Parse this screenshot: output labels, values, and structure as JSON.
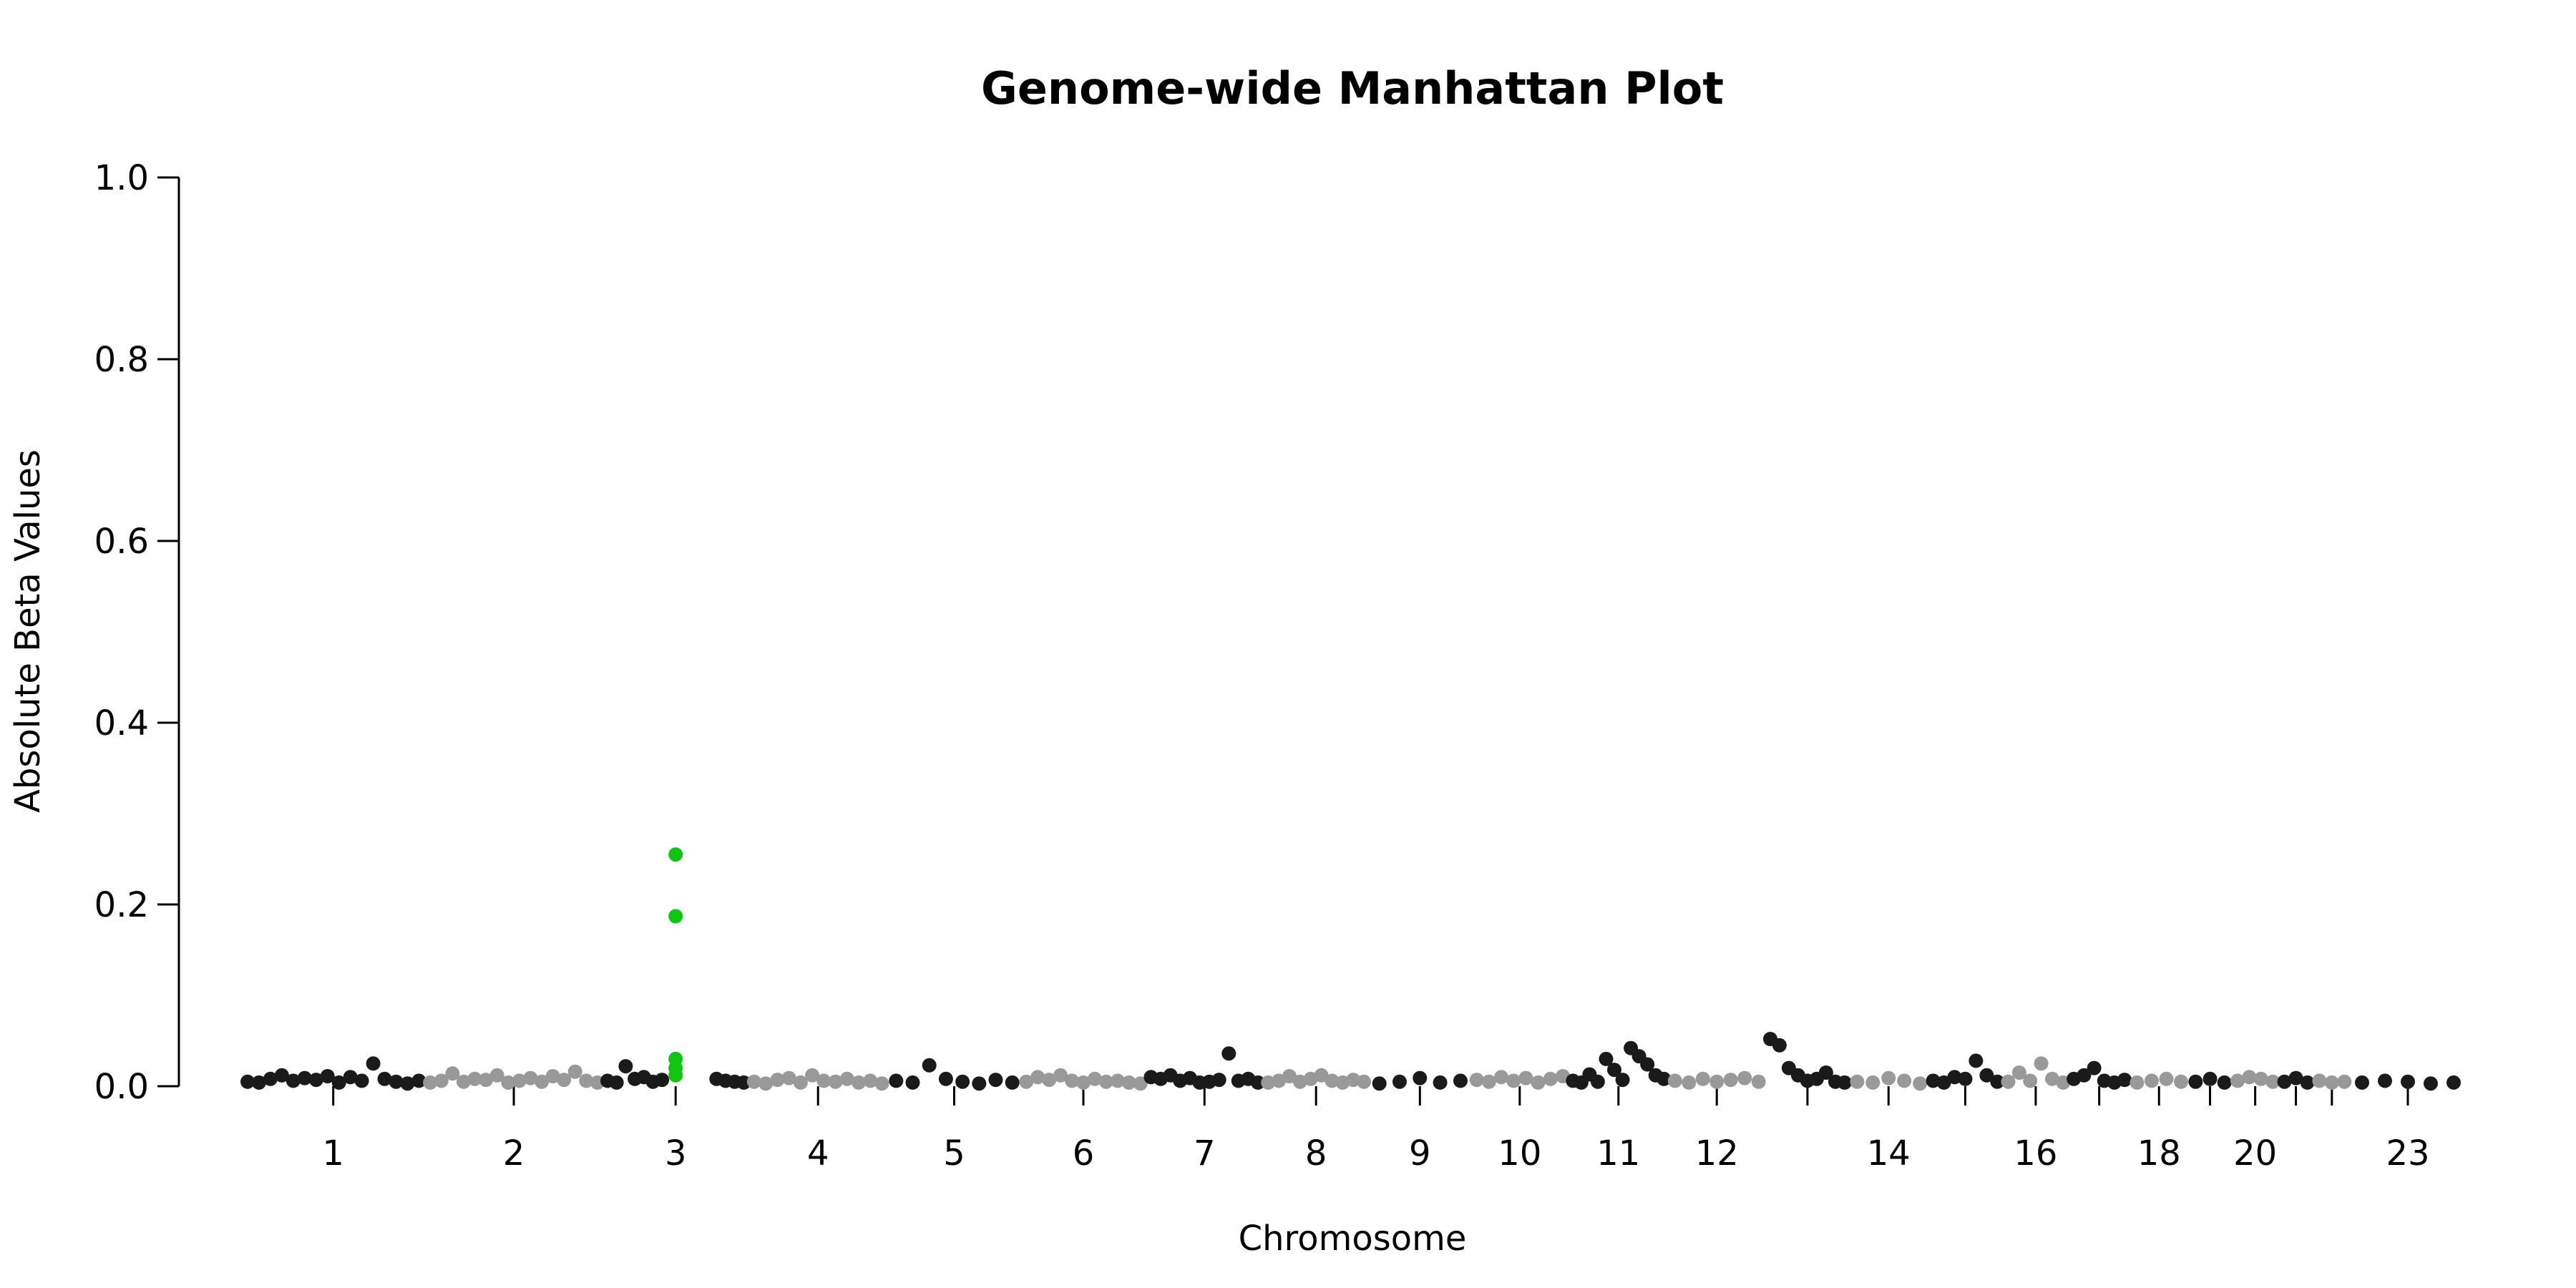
{
  "chart_data": {
    "type": "scatter",
    "title": "Genome-wide Manhattan Plot",
    "xlabel": "Chromosome",
    "ylabel": "Absolute Beta Values",
    "ylim": [
      0,
      1
    ],
    "yticks": [
      "0.0",
      "0.2",
      "0.4",
      "0.6",
      "0.8",
      "1.0"
    ],
    "grid": false,
    "legend": "none",
    "colors": {
      "odd": "#1a1a1a",
      "even": "#999999",
      "highlight": "#11c411"
    },
    "chromosomes": [
      {
        "chr": "1",
        "label": "1"
      },
      {
        "chr": "2",
        "label": "2"
      },
      {
        "chr": "3",
        "label": "3"
      },
      {
        "chr": "4",
        "label": "4"
      },
      {
        "chr": "5",
        "label": "5"
      },
      {
        "chr": "6",
        "label": "6"
      },
      {
        "chr": "7",
        "label": "7"
      },
      {
        "chr": "8",
        "label": "8"
      },
      {
        "chr": "9",
        "label": "9"
      },
      {
        "chr": "10",
        "label": "10"
      },
      {
        "chr": "11",
        "label": "11"
      },
      {
        "chr": "12",
        "label": "12"
      },
      {
        "chr": "13",
        "label": ""
      },
      {
        "chr": "14",
        "label": "14"
      },
      {
        "chr": "15",
        "label": ""
      },
      {
        "chr": "16",
        "label": "16"
      },
      {
        "chr": "17",
        "label": ""
      },
      {
        "chr": "18",
        "label": "18"
      },
      {
        "chr": "19",
        "label": ""
      },
      {
        "chr": "20",
        "label": "20"
      },
      {
        "chr": "21",
        "label": ""
      },
      {
        "chr": "22",
        "label": ""
      },
      {
        "chr": "23",
        "label": "23"
      }
    ],
    "series": [
      {
        "chr": "1",
        "values": [
          0.005,
          0.004,
          0.008,
          0.012,
          0.006,
          0.009,
          0.007,
          0.011,
          0.004,
          0.01,
          0.006,
          0.025,
          0.008,
          0.005,
          0.003,
          0.006
        ]
      },
      {
        "chr": "2",
        "values": [
          0.004,
          0.006,
          0.014,
          0.005,
          0.008,
          0.007,
          0.012,
          0.004,
          0.006,
          0.009,
          0.005,
          0.011,
          0.007,
          0.016,
          0.006,
          0.004
        ]
      },
      {
        "chr": "3",
        "values": [
          0.006,
          0.004,
          0.022,
          0.008,
          0.01,
          0.005,
          0.007,
          0.255,
          0.187,
          0.03,
          0.02,
          0.012,
          0.008,
          0.006,
          0.005,
          0.004
        ],
        "highlight": [
          7,
          8,
          9,
          10,
          11
        ]
      },
      {
        "chr": "4",
        "values": [
          0.005,
          0.003,
          0.007,
          0.009,
          0.004,
          0.012,
          0.006,
          0.005,
          0.008,
          0.004,
          0.006,
          0.003
        ]
      },
      {
        "chr": "5",
        "values": [
          0.006,
          0.004,
          0.023,
          0.008,
          0.005,
          0.003,
          0.007,
          0.004
        ]
      },
      {
        "chr": "6",
        "values": [
          0.005,
          0.01,
          0.007,
          0.012,
          0.006,
          0.004,
          0.008,
          0.005,
          0.006,
          0.004,
          0.003
        ]
      },
      {
        "chr": "7",
        "values": [
          0.01,
          0.008,
          0.012,
          0.006,
          0.009,
          0.004,
          0.005,
          0.007,
          0.036,
          0.006,
          0.008,
          0.004
        ]
      },
      {
        "chr": "8",
        "values": [
          0.004,
          0.006,
          0.011,
          0.005,
          0.008,
          0.012,
          0.006,
          0.004,
          0.007,
          0.005
        ]
      },
      {
        "chr": "9",
        "values": [
          0.003,
          0.005,
          0.009,
          0.004,
          0.006
        ]
      },
      {
        "chr": "10",
        "values": [
          0.007,
          0.005,
          0.01,
          0.006,
          0.009,
          0.004,
          0.008,
          0.011
        ]
      },
      {
        "chr": "11",
        "values": [
          0.006,
          0.004,
          0.013,
          0.005,
          0.03,
          0.018,
          0.007,
          0.042,
          0.033,
          0.024,
          0.012,
          0.008
        ]
      },
      {
        "chr": "12",
        "values": [
          0.006,
          0.004,
          0.008,
          0.005,
          0.007,
          0.009,
          0.005
        ]
      },
      {
        "chr": "13",
        "values": [
          0.052,
          0.045,
          0.02,
          0.012,
          0.006,
          0.008,
          0.015,
          0.005,
          0.004
        ]
      },
      {
        "chr": "14",
        "values": [
          0.005,
          0.004,
          0.009,
          0.006,
          0.003
        ]
      },
      {
        "chr": "15",
        "values": [
          0.006,
          0.004,
          0.01,
          0.008,
          0.028,
          0.012,
          0.005
        ]
      },
      {
        "chr": "16",
        "values": [
          0.005,
          0.015,
          0.006,
          0.025,
          0.008,
          0.004
        ]
      },
      {
        "chr": "17",
        "values": [
          0.008,
          0.012,
          0.02,
          0.006,
          0.004,
          0.007
        ]
      },
      {
        "chr": "18",
        "values": [
          0.004,
          0.006,
          0.008,
          0.005
        ]
      },
      {
        "chr": "19",
        "values": [
          0.005,
          0.008,
          0.004
        ]
      },
      {
        "chr": "20",
        "values": [
          0.006,
          0.01,
          0.008,
          0.005
        ]
      },
      {
        "chr": "21",
        "values": [
          0.005,
          0.009,
          0.004
        ]
      },
      {
        "chr": "22",
        "values": [
          0.006,
          0.004,
          0.005
        ]
      },
      {
        "chr": "23",
        "values": [
          0.004,
          0.006,
          0.005,
          0.003,
          0.004
        ]
      }
    ]
  }
}
